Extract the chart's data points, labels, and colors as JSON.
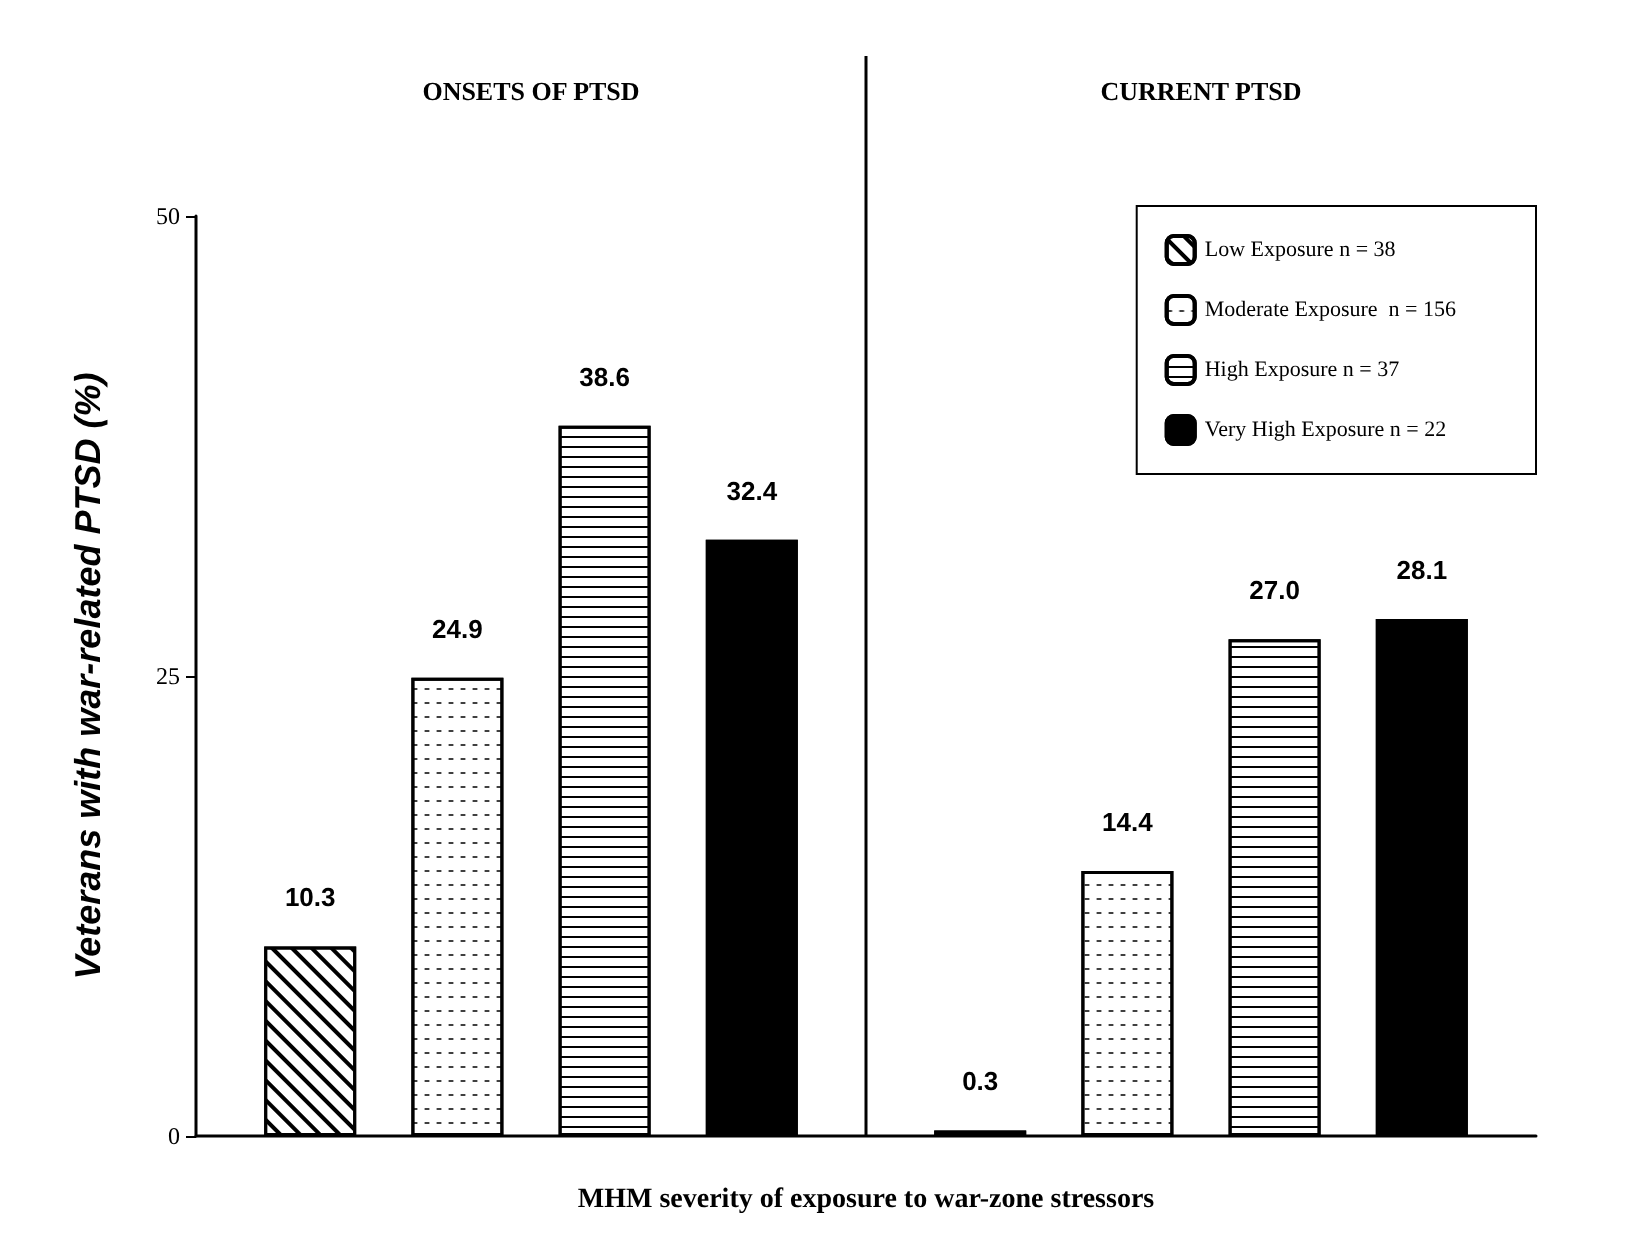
{
  "chart_data": {
    "type": "bar",
    "categories": [
      "ONSETS OF PTSD",
      "CURRENT PTSD"
    ],
    "series": [
      {
        "name": "Low Exposure n = 38",
        "color": "#ffffff",
        "values": [
          10.3,
          0.3
        ],
        "value_labels": [
          "10.3",
          "0.3"
        ]
      },
      {
        "name": "Moderate Exposure  n = 156",
        "color": "#ffffff",
        "values": [
          24.9,
          14.4
        ],
        "value_labels": [
          "24.9",
          "14.4"
        ]
      },
      {
        "name": "High Exposure n = 37",
        "color": "#ffffff",
        "values": [
          38.6,
          27.0
        ],
        "value_labels": [
          "38.6",
          "27.0"
        ]
      },
      {
        "name": "Very High Exposure n = 22",
        "color": "#000000",
        "values": [
          32.4,
          28.1
        ],
        "value_labels": [
          "32.4",
          "28.1"
        ]
      }
    ],
    "ylabel": "Veterans with war-related PTSD (%)",
    "xlabel": "MHM severity of exposure to war-zone stressors",
    "ylim": [
      0,
      50
    ],
    "yticks": [
      0,
      25,
      50
    ],
    "legend": "top right"
  }
}
